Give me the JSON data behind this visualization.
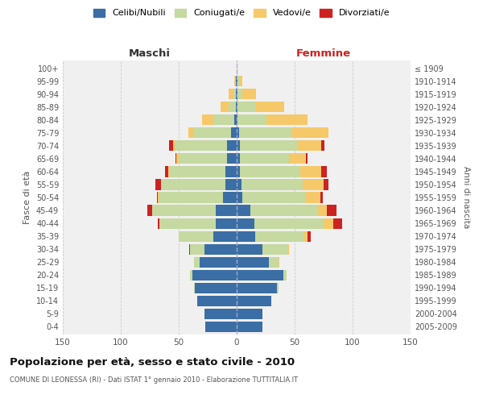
{
  "age_groups": [
    "0-4",
    "5-9",
    "10-14",
    "15-19",
    "20-24",
    "25-29",
    "30-34",
    "35-39",
    "40-44",
    "45-49",
    "50-54",
    "55-59",
    "60-64",
    "65-69",
    "70-74",
    "75-79",
    "80-84",
    "85-89",
    "90-94",
    "95-99",
    "100+"
  ],
  "birth_years": [
    "2005-2009",
    "2000-2004",
    "1995-1999",
    "1990-1994",
    "1985-1989",
    "1980-1984",
    "1975-1979",
    "1970-1974",
    "1965-1969",
    "1960-1964",
    "1955-1959",
    "1950-1954",
    "1945-1949",
    "1940-1944",
    "1935-1939",
    "1930-1934",
    "1925-1929",
    "1920-1924",
    "1915-1919",
    "1910-1914",
    "≤ 1909"
  ],
  "colors": {
    "celibi": "#3a6ea5",
    "coniugati": "#c5d9a0",
    "vedovi": "#f5c96a",
    "divorziati": "#cc2222"
  },
  "maschi": {
    "celibi": [
      27,
      28,
      34,
      36,
      38,
      32,
      28,
      20,
      18,
      18,
      12,
      10,
      10,
      8,
      8,
      5,
      2,
      1,
      1,
      1,
      0
    ],
    "coniugati": [
      0,
      0,
      0,
      1,
      2,
      5,
      12,
      30,
      48,
      55,
      55,
      55,
      48,
      42,
      45,
      32,
      18,
      6,
      2,
      0,
      0
    ],
    "vedovi": [
      0,
      0,
      0,
      0,
      0,
      0,
      0,
      0,
      1,
      0,
      1,
      0,
      1,
      2,
      2,
      5,
      10,
      7,
      4,
      1,
      0
    ],
    "divorziati": [
      0,
      0,
      0,
      0,
      0,
      0,
      1,
      0,
      1,
      4,
      1,
      5,
      3,
      1,
      3,
      0,
      0,
      0,
      0,
      0,
      0
    ]
  },
  "femmine": {
    "celibi": [
      22,
      22,
      30,
      35,
      40,
      28,
      22,
      16,
      15,
      12,
      5,
      4,
      3,
      3,
      3,
      2,
      1,
      1,
      1,
      1,
      0
    ],
    "coniugati": [
      0,
      0,
      0,
      1,
      3,
      8,
      22,
      42,
      60,
      58,
      55,
      53,
      52,
      42,
      50,
      45,
      25,
      15,
      4,
      1,
      0
    ],
    "vedovi": [
      0,
      0,
      0,
      0,
      0,
      1,
      1,
      3,
      8,
      8,
      12,
      18,
      18,
      15,
      20,
      32,
      35,
      25,
      12,
      3,
      1
    ],
    "divorziati": [
      0,
      0,
      0,
      0,
      0,
      0,
      0,
      3,
      8,
      8,
      2,
      4,
      5,
      1,
      3,
      0,
      0,
      0,
      0,
      0,
      0
    ]
  },
  "xlim": 150,
  "title": "Popolazione per età, sesso e stato civile - 2010",
  "subtitle": "COMUNE DI LEONESSA (RI) - Dati ISTAT 1° gennaio 2010 - Elaborazione TUTTITALIA.IT",
  "xlabel_left": "Maschi",
  "xlabel_right": "Femmine",
  "ylabel": "Fasce di età",
  "ylabel_right": "Anni di nascita",
  "legend_labels": [
    "Celibi/Nubili",
    "Coniugati/e",
    "Vedovi/e",
    "Divorziati/e"
  ],
  "bg_color": "#f0f0f0",
  "grid_color": "#cccccc"
}
